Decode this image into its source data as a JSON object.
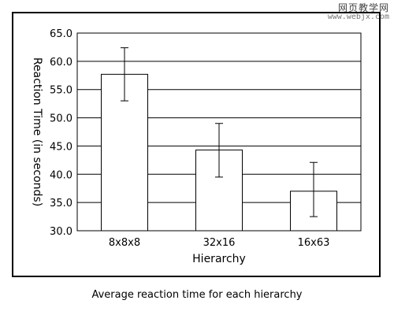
{
  "caption": "Average reaction time for each hierarchy",
  "watermark": {
    "text": "网页教学网",
    "url": "www.webjx.com"
  },
  "chart_data": {
    "type": "bar",
    "title": "",
    "xlabel": "Hierarchy",
    "ylabel": "Reaction Time (in seconds)",
    "categories": [
      "8x8x8",
      "32x16",
      "16x63"
    ],
    "values": [
      57.7,
      44.3,
      37.0
    ],
    "error_bars": [
      {
        "low": 53.0,
        "high": 62.4
      },
      {
        "low": 39.5,
        "high": 49.0
      },
      {
        "low": 32.5,
        "high": 42.1
      }
    ],
    "ylim": [
      30.0,
      65.0
    ],
    "yticks": [
      "30.0",
      "35.0",
      "40.0",
      "45.0",
      "50.0",
      "55.0",
      "60.0",
      "65.0"
    ],
    "grid": true,
    "legend": "none",
    "colors": {
      "bar_fill": "#ffffff",
      "bar_stroke": "#000000",
      "grid": "#000000"
    }
  }
}
